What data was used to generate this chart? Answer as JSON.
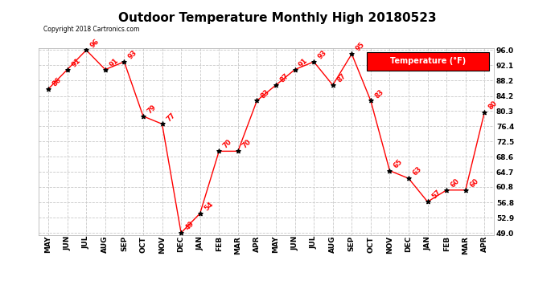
{
  "title": "Outdoor Temperature Monthly High 20180523",
  "copyright_text": "Copyright 2018 Cartronics.com",
  "legend_label": "Temperature (°F)",
  "months": [
    "MAY",
    "JUN",
    "JUL",
    "AUG",
    "SEP",
    "OCT",
    "NOV",
    "DEC",
    "JAN",
    "FEB",
    "MAR",
    "APR",
    "MAY",
    "JUN",
    "JUL",
    "AUG",
    "SEP",
    "OCT",
    "NOV",
    "DEC",
    "JAN",
    "FEB",
    "MAR",
    "APR"
  ],
  "values": [
    86,
    91,
    96,
    91,
    93,
    79,
    77,
    49,
    54,
    70,
    70,
    83,
    87,
    91,
    93,
    87,
    95,
    83,
    65,
    63,
    57,
    60,
    60,
    80
  ],
  "ylim_min": 49.0,
  "ylim_max": 96.0,
  "yticks": [
    49.0,
    52.9,
    56.8,
    60.8,
    64.7,
    68.6,
    72.5,
    76.4,
    80.3,
    84.2,
    88.2,
    92.1,
    96.0
  ],
  "line_color": "red",
  "marker_color": "black",
  "marker_style": "*",
  "background_color": "#ffffff",
  "grid_color": "#c8c8c8",
  "label_color": "red",
  "title_fontsize": 11,
  "legend_bg": "red",
  "legend_text_color": "white"
}
